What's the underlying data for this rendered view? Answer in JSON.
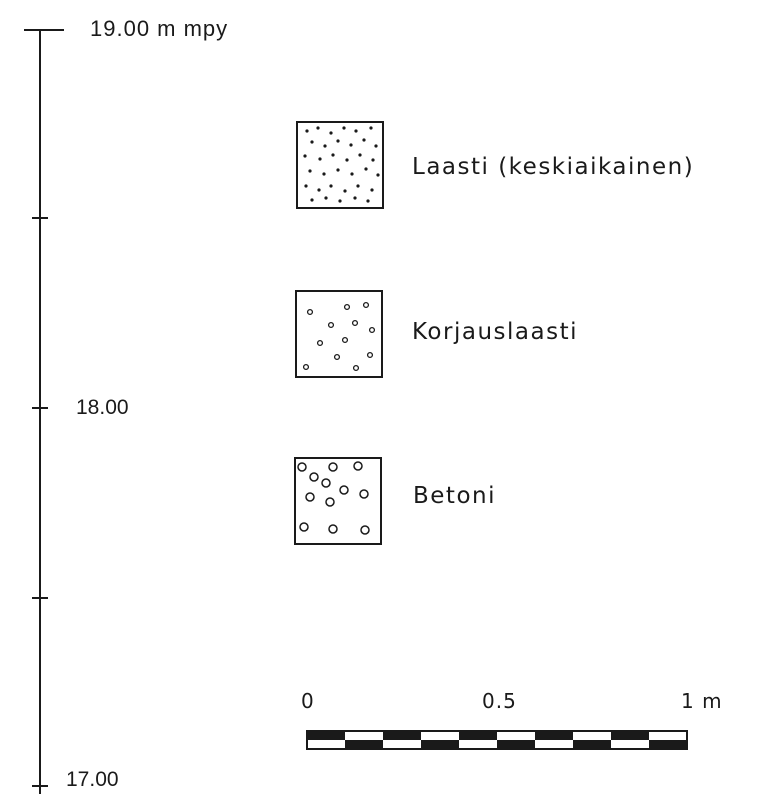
{
  "elevation_axis": {
    "top_label": "19.00 m mpy",
    "middle_label": "18.00",
    "bottom_label": "17.00"
  },
  "legend": {
    "items": [
      {
        "label": "Laasti (keskiaikainen)",
        "pattern": "dots"
      },
      {
        "label": "Korjauslaasti",
        "pattern": "small-circles"
      },
      {
        "label": "Betoni",
        "pattern": "large-circles"
      }
    ]
  },
  "scale_bar": {
    "label_start": "0",
    "label_mid": "0.5",
    "label_end": "1 m",
    "unit": "m",
    "length": 1,
    "segments": 10
  },
  "colors": {
    "ink": "#1a1a1a",
    "paper": "#ffffff"
  }
}
